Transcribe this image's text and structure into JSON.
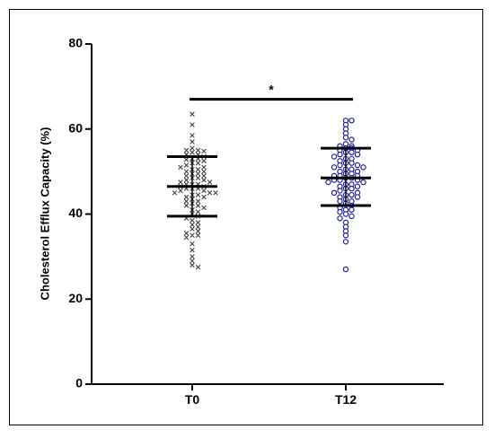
{
  "chart_data": {
    "type": "scatter",
    "title": "",
    "xlabel": "",
    "ylabel": "Cholesterol Efflux Capacity (%)",
    "ylim": [
      0,
      80
    ],
    "yticks": [
      "0",
      "20",
      "40",
      "60",
      "80"
    ],
    "grid": false,
    "categories": [
      "T0",
      "T12"
    ],
    "series": [
      {
        "marker": "x",
        "color": "#404040",
        "values": [
          63.5,
          61,
          58.5,
          57,
          55.5,
          55,
          55,
          54.8,
          54.5,
          54,
          54,
          53.5,
          53,
          53,
          52.8,
          52.5,
          52,
          52,
          51.5,
          51,
          51,
          50.5,
          50.5,
          50,
          50,
          49.5,
          49.5,
          49,
          49,
          48.5,
          48.5,
          48,
          48,
          47.5,
          47.5,
          47,
          47,
          47,
          46.5,
          46.5,
          46,
          46,
          46,
          45.5,
          45.5,
          45,
          45,
          45,
          44.5,
          44.5,
          44,
          44,
          43.5,
          43,
          43,
          42.5,
          42,
          42,
          41.5,
          41,
          40.5,
          40,
          39.5,
          39,
          38.5,
          38,
          37.5,
          37,
          36.5,
          36,
          35.5,
          35,
          35,
          34.5,
          33,
          31.5,
          30,
          29,
          28,
          27.5
        ],
        "mean": 46.5,
        "sd_low": 39.5,
        "sd_high": 53.5
      },
      {
        "marker": "circle",
        "color": "#1f1f9e",
        "values": [
          62,
          62,
          61,
          60,
          59,
          58,
          57.5,
          56.5,
          56,
          56,
          55.5,
          55.5,
          55,
          55,
          54.5,
          54.5,
          54,
          54,
          53.5,
          53,
          53,
          52.5,
          52,
          52,
          51.5,
          51.5,
          51,
          51,
          50.5,
          50.5,
          50,
          50,
          49.5,
          49.5,
          49,
          49,
          49,
          48.5,
          48.5,
          48,
          48,
          48,
          47.5,
          47.5,
          47,
          47,
          46.5,
          46.5,
          46,
          46,
          45.5,
          45,
          45,
          44.5,
          44.5,
          44,
          44,
          43.5,
          43,
          43,
          42.5,
          42,
          41.5,
          41,
          41,
          40.5,
          40,
          39.5,
          39,
          38,
          37,
          36,
          35,
          33.5,
          27
        ],
        "mean": 48.5,
        "sd_low": 42,
        "sd_high": 55.5
      }
    ],
    "significance": {
      "label": "*",
      "y": 67
    }
  }
}
